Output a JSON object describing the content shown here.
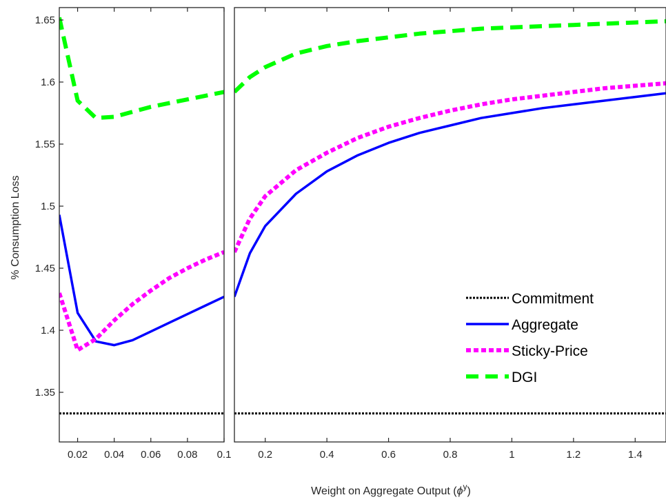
{
  "chart_data": {
    "type": "line",
    "title": "",
    "ylabel": "% Consumption Loss",
    "xlabel": "Weight on Aggregate Output (",
    "xlabel_symbol": "ϕ",
    "xlabel_superscript": "y",
    "xlabel_close": ")",
    "ylim": [
      1.31,
      1.66
    ],
    "yticks": [
      1.35,
      1.4,
      1.45,
      1.5,
      1.55,
      1.6,
      1.65
    ],
    "ytick_labels": [
      "1.35",
      "1.4",
      "1.45",
      "1.5",
      "1.55",
      "1.6",
      "1.65"
    ],
    "grid": false,
    "legend_position": "lower-right",
    "panels": [
      {
        "name": "left",
        "xlim": [
          0.01,
          0.1
        ],
        "xticks": [
          0.02,
          0.04,
          0.06,
          0.08,
          0.1
        ],
        "xtick_labels": [
          "0.02",
          "0.04",
          "0.06",
          "0.08",
          "0.1"
        ],
        "series": [
          {
            "name": "Commitment",
            "key": "commitment",
            "x": [
              0.01,
              0.1
            ],
            "y": [
              1.333,
              1.333
            ]
          },
          {
            "name": "Aggregate",
            "key": "aggregate",
            "x": [
              0.01,
              0.02,
              0.03,
              0.04,
              0.05,
              0.06,
              0.07,
              0.08,
              0.09,
              0.1
            ],
            "y": [
              1.493,
              1.414,
              1.391,
              1.388,
              1.392,
              1.399,
              1.406,
              1.413,
              1.42,
              1.427
            ]
          },
          {
            "name": "Sticky-Price",
            "key": "sticky",
            "x": [
              0.01,
              0.02,
              0.03,
              0.04,
              0.05,
              0.06,
              0.07,
              0.08,
              0.09,
              0.1
            ],
            "y": [
              1.43,
              1.384,
              1.393,
              1.408,
              1.421,
              1.432,
              1.442,
              1.45,
              1.457,
              1.463
            ]
          },
          {
            "name": "DGI",
            "key": "dgi",
            "x": [
              0.01,
              0.02,
              0.03,
              0.04,
              0.05,
              0.06,
              0.07,
              0.08,
              0.09,
              0.1
            ],
            "y": [
              1.652,
              1.585,
              1.571,
              1.572,
              1.576,
              1.58,
              1.583,
              1.586,
              1.589,
              1.592
            ]
          }
        ]
      },
      {
        "name": "right",
        "xlim": [
          0.1,
          1.5
        ],
        "xticks": [
          0.2,
          0.4,
          0.6,
          0.8,
          1.0,
          1.2,
          1.4
        ],
        "xtick_labels": [
          "0.2",
          "0.4",
          "0.6",
          "0.8",
          "1",
          "1.2",
          "1.4"
        ],
        "series": [
          {
            "name": "Commitment",
            "key": "commitment",
            "x": [
              0.1,
              1.5
            ],
            "y": [
              1.333,
              1.333
            ]
          },
          {
            "name": "Aggregate",
            "key": "aggregate",
            "x": [
              0.1,
              0.15,
              0.2,
              0.3,
              0.4,
              0.5,
              0.6,
              0.7,
              0.8,
              0.9,
              1.0,
              1.1,
              1.2,
              1.3,
              1.4,
              1.5
            ],
            "y": [
              1.427,
              1.462,
              1.484,
              1.51,
              1.528,
              1.541,
              1.551,
              1.559,
              1.565,
              1.571,
              1.575,
              1.579,
              1.582,
              1.585,
              1.588,
              1.591
            ]
          },
          {
            "name": "Sticky-Price",
            "key": "sticky",
            "x": [
              0.1,
              0.15,
              0.2,
              0.3,
              0.4,
              0.5,
              0.6,
              0.7,
              0.8,
              0.9,
              1.0,
              1.1,
              1.2,
              1.3,
              1.4,
              1.5
            ],
            "y": [
              1.463,
              1.49,
              1.508,
              1.529,
              1.543,
              1.555,
              1.564,
              1.571,
              1.577,
              1.582,
              1.586,
              1.589,
              1.592,
              1.595,
              1.597,
              1.599
            ]
          },
          {
            "name": "DGI",
            "key": "dgi",
            "x": [
              0.1,
              0.15,
              0.2,
              0.3,
              0.4,
              0.5,
              0.6,
              0.7,
              0.8,
              0.9,
              1.0,
              1.1,
              1.2,
              1.3,
              1.4,
              1.5
            ],
            "y": [
              1.592,
              1.604,
              1.612,
              1.623,
              1.629,
              1.633,
              1.636,
              1.639,
              1.641,
              1.643,
              1.644,
              1.645,
              1.646,
              1.647,
              1.648,
              1.649
            ]
          }
        ]
      }
    ],
    "legend": [
      {
        "key": "commitment",
        "label": "Commitment"
      },
      {
        "key": "aggregate",
        "label": "Aggregate"
      },
      {
        "key": "sticky",
        "label": "Sticky-Price"
      },
      {
        "key": "dgi",
        "label": "DGI"
      }
    ],
    "colors": {
      "commitment": "#000000",
      "aggregate": "#0000ff",
      "sticky": "#ff00ff",
      "dgi": "#00ff00"
    }
  }
}
